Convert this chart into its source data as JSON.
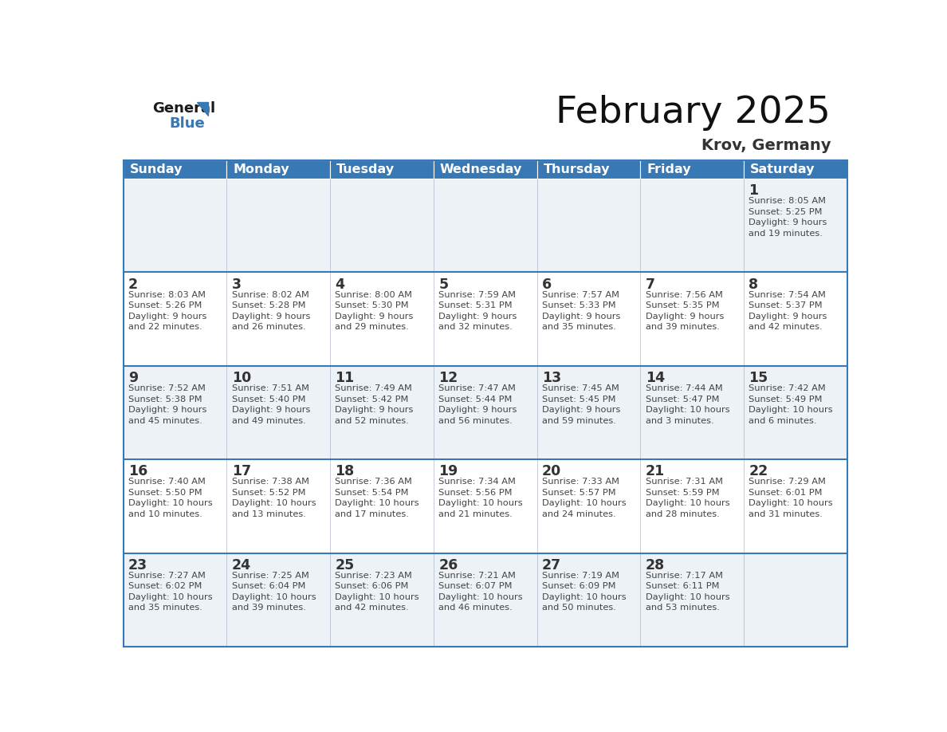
{
  "title": "February 2025",
  "subtitle": "Krov, Germany",
  "header_color": "#3878b4",
  "header_text_color": "#ffffff",
  "days_of_week": [
    "Sunday",
    "Monday",
    "Tuesday",
    "Wednesday",
    "Thursday",
    "Friday",
    "Saturday"
  ],
  "background_color": "#ffffff",
  "cell_bg_week1": "#eef2f7",
  "cell_bg_week2": "#ffffff",
  "cell_bg_week3": "#eef2f7",
  "cell_bg_week4": "#ffffff",
  "cell_bg_week5": "#eef2f7",
  "divider_color": "#3878b4",
  "text_color": "#444444",
  "day_num_color": "#333333",
  "calendar": [
    [
      null,
      null,
      null,
      null,
      null,
      null,
      {
        "day": 1,
        "sunrise": "8:05 AM",
        "sunset": "5:25 PM",
        "daylight": "9 hours\nand 19 minutes."
      }
    ],
    [
      {
        "day": 2,
        "sunrise": "8:03 AM",
        "sunset": "5:26 PM",
        "daylight": "9 hours\nand 22 minutes."
      },
      {
        "day": 3,
        "sunrise": "8:02 AM",
        "sunset": "5:28 PM",
        "daylight": "9 hours\nand 26 minutes."
      },
      {
        "day": 4,
        "sunrise": "8:00 AM",
        "sunset": "5:30 PM",
        "daylight": "9 hours\nand 29 minutes."
      },
      {
        "day": 5,
        "sunrise": "7:59 AM",
        "sunset": "5:31 PM",
        "daylight": "9 hours\nand 32 minutes."
      },
      {
        "day": 6,
        "sunrise": "7:57 AM",
        "sunset": "5:33 PM",
        "daylight": "9 hours\nand 35 minutes."
      },
      {
        "day": 7,
        "sunrise": "7:56 AM",
        "sunset": "5:35 PM",
        "daylight": "9 hours\nand 39 minutes."
      },
      {
        "day": 8,
        "sunrise": "7:54 AM",
        "sunset": "5:37 PM",
        "daylight": "9 hours\nand 42 minutes."
      }
    ],
    [
      {
        "day": 9,
        "sunrise": "7:52 AM",
        "sunset": "5:38 PM",
        "daylight": "9 hours\nand 45 minutes."
      },
      {
        "day": 10,
        "sunrise": "7:51 AM",
        "sunset": "5:40 PM",
        "daylight": "9 hours\nand 49 minutes."
      },
      {
        "day": 11,
        "sunrise": "7:49 AM",
        "sunset": "5:42 PM",
        "daylight": "9 hours\nand 52 minutes."
      },
      {
        "day": 12,
        "sunrise": "7:47 AM",
        "sunset": "5:44 PM",
        "daylight": "9 hours\nand 56 minutes."
      },
      {
        "day": 13,
        "sunrise": "7:45 AM",
        "sunset": "5:45 PM",
        "daylight": "9 hours\nand 59 minutes."
      },
      {
        "day": 14,
        "sunrise": "7:44 AM",
        "sunset": "5:47 PM",
        "daylight": "10 hours\nand 3 minutes."
      },
      {
        "day": 15,
        "sunrise": "7:42 AM",
        "sunset": "5:49 PM",
        "daylight": "10 hours\nand 6 minutes."
      }
    ],
    [
      {
        "day": 16,
        "sunrise": "7:40 AM",
        "sunset": "5:50 PM",
        "daylight": "10 hours\nand 10 minutes."
      },
      {
        "day": 17,
        "sunrise": "7:38 AM",
        "sunset": "5:52 PM",
        "daylight": "10 hours\nand 13 minutes."
      },
      {
        "day": 18,
        "sunrise": "7:36 AM",
        "sunset": "5:54 PM",
        "daylight": "10 hours\nand 17 minutes."
      },
      {
        "day": 19,
        "sunrise": "7:34 AM",
        "sunset": "5:56 PM",
        "daylight": "10 hours\nand 21 minutes."
      },
      {
        "day": 20,
        "sunrise": "7:33 AM",
        "sunset": "5:57 PM",
        "daylight": "10 hours\nand 24 minutes."
      },
      {
        "day": 21,
        "sunrise": "7:31 AM",
        "sunset": "5:59 PM",
        "daylight": "10 hours\nand 28 minutes."
      },
      {
        "day": 22,
        "sunrise": "7:29 AM",
        "sunset": "6:01 PM",
        "daylight": "10 hours\nand 31 minutes."
      }
    ],
    [
      {
        "day": 23,
        "sunrise": "7:27 AM",
        "sunset": "6:02 PM",
        "daylight": "10 hours\nand 35 minutes."
      },
      {
        "day": 24,
        "sunrise": "7:25 AM",
        "sunset": "6:04 PM",
        "daylight": "10 hours\nand 39 minutes."
      },
      {
        "day": 25,
        "sunrise": "7:23 AM",
        "sunset": "6:06 PM",
        "daylight": "10 hours\nand 42 minutes."
      },
      {
        "day": 26,
        "sunrise": "7:21 AM",
        "sunset": "6:07 PM",
        "daylight": "10 hours\nand 46 minutes."
      },
      {
        "day": 27,
        "sunrise": "7:19 AM",
        "sunset": "6:09 PM",
        "daylight": "10 hours\nand 50 minutes."
      },
      {
        "day": 28,
        "sunrise": "7:17 AM",
        "sunset": "6:11 PM",
        "daylight": "10 hours\nand 53 minutes."
      },
      null
    ]
  ],
  "row_colors": [
    "#edf2f7",
    "#ffffff",
    "#edf2f7",
    "#ffffff",
    "#edf2f7"
  ]
}
